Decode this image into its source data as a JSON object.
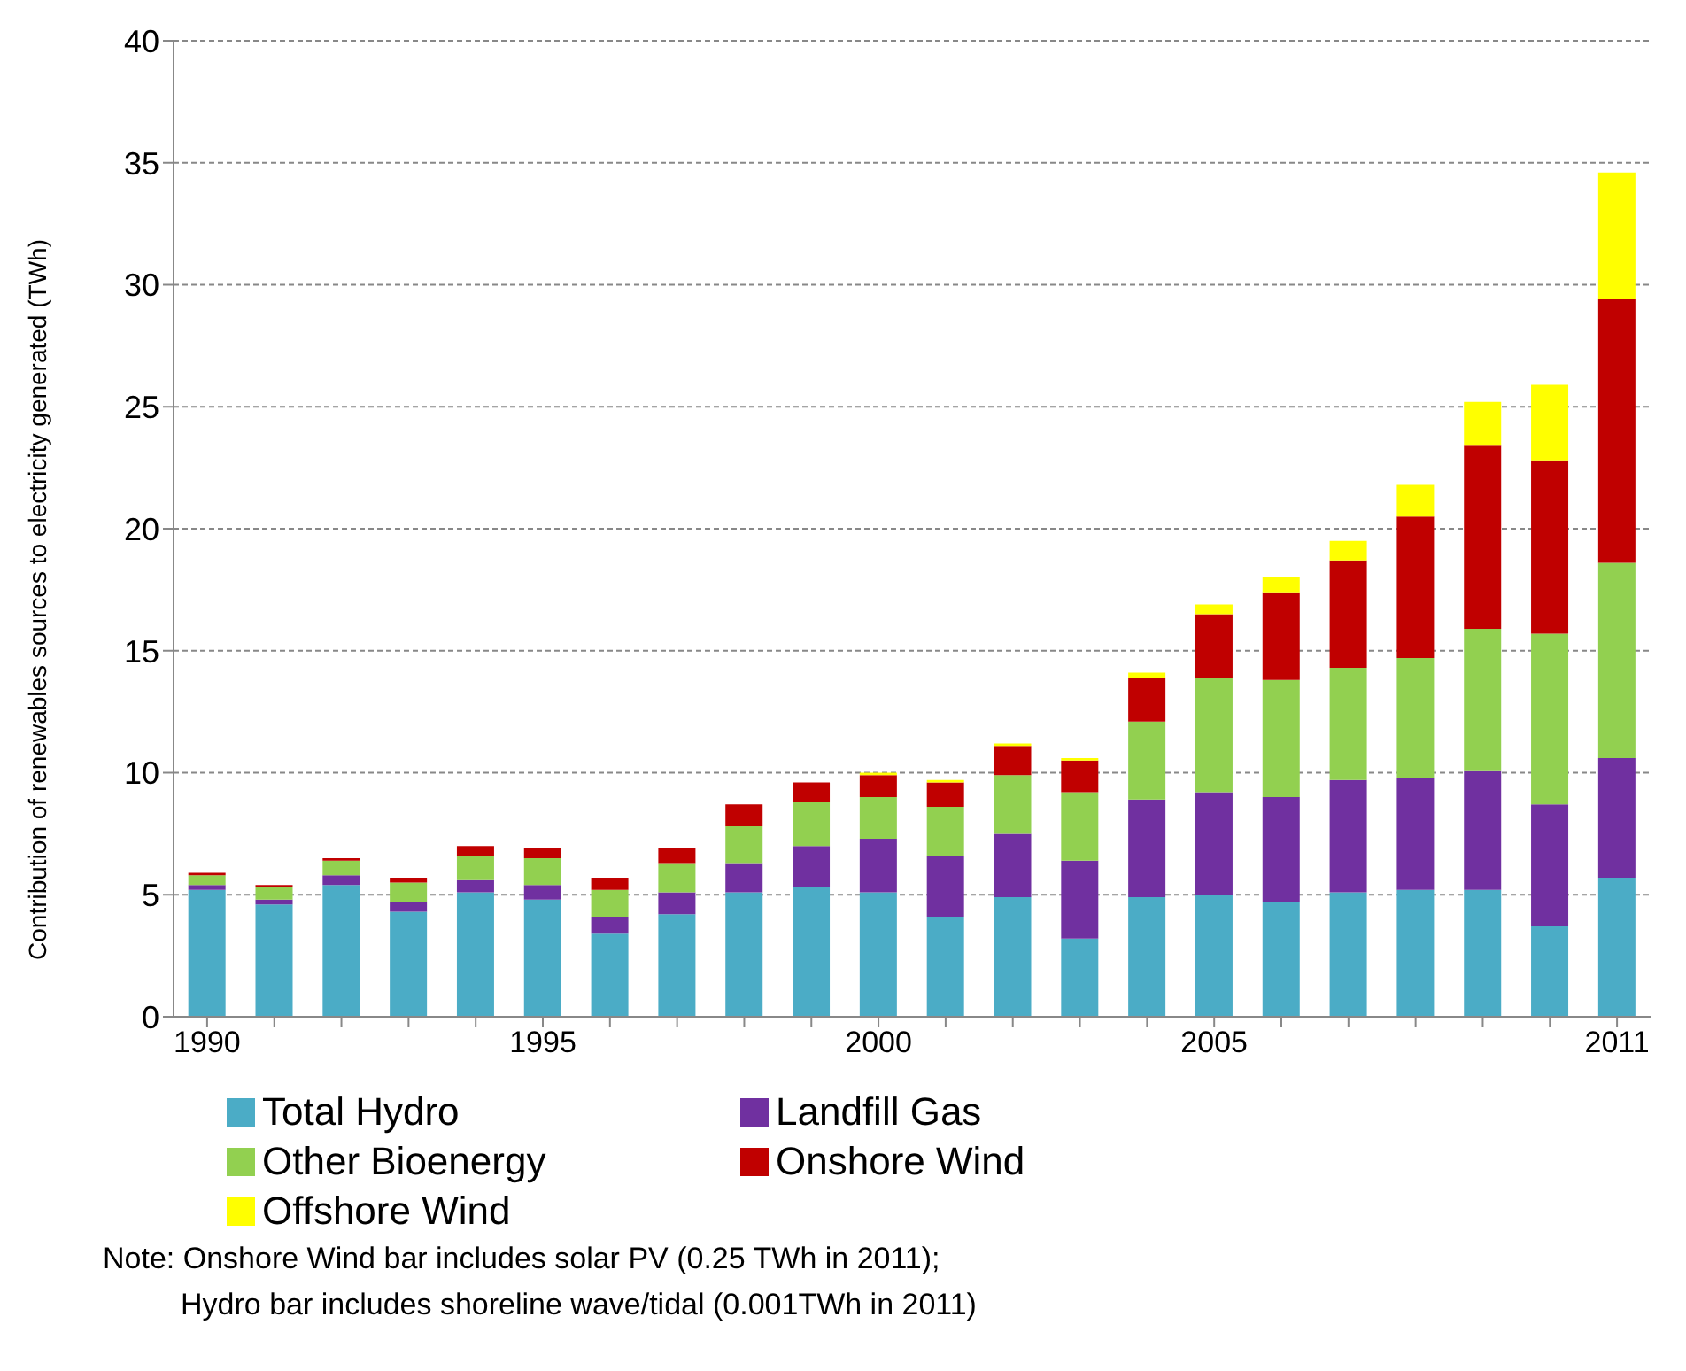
{
  "chart_data": {
    "type": "bar",
    "stacked": true,
    "ylabel": "Contribution of  renewables  sources to electricity generated  (TWh)",
    "categories": [
      "1990",
      null,
      null,
      null,
      null,
      "1995",
      null,
      null,
      null,
      null,
      "2000",
      null,
      null,
      null,
      null,
      "2005",
      null,
      null,
      null,
      null,
      null,
      "2011"
    ],
    "series": [
      {
        "name": "Total Hydro",
        "color": "#4bacc6",
        "values": [
          5.2,
          4.6,
          5.4,
          4.3,
          5.1,
          4.8,
          3.4,
          4.2,
          5.1,
          5.3,
          5.1,
          4.1,
          4.9,
          3.2,
          4.9,
          5.0,
          4.7,
          5.1,
          5.2,
          5.2,
          3.7,
          5.7
        ]
      },
      {
        "name": "Landfill Gas",
        "color": "#7030a0",
        "values": [
          0.2,
          0.2,
          0.4,
          0.4,
          0.5,
          0.6,
          0.7,
          0.9,
          1.2,
          1.7,
          2.2,
          2.5,
          2.6,
          3.2,
          4.0,
          4.2,
          4.3,
          4.6,
          4.6,
          4.9,
          5.0,
          4.9
        ]
      },
      {
        "name": "Other Bioenergy",
        "color": "#92d050",
        "values": [
          0.4,
          0.5,
          0.6,
          0.8,
          1.0,
          1.1,
          1.1,
          1.2,
          1.5,
          1.8,
          1.7,
          2.0,
          2.4,
          2.8,
          3.2,
          4.7,
          4.8,
          4.6,
          4.9,
          5.8,
          7.0,
          8.0
        ]
      },
      {
        "name": "Onshore Wind",
        "color": "#c00000",
        "values": [
          0.1,
          0.1,
          0.1,
          0.2,
          0.4,
          0.4,
          0.5,
          0.6,
          0.9,
          0.8,
          0.9,
          1.0,
          1.2,
          1.3,
          1.8,
          2.6,
          3.6,
          4.4,
          5.8,
          7.5,
          7.1,
          10.8
        ]
      },
      {
        "name": "Offshore Wind",
        "color": "#ffff00",
        "values": [
          0,
          0,
          0,
          0,
          0,
          0,
          0,
          0,
          0,
          0,
          0.1,
          0.1,
          0.1,
          0.1,
          0.2,
          0.4,
          0.6,
          0.8,
          1.3,
          1.8,
          3.1,
          5.2
        ]
      }
    ],
    "ylim": [
      0,
      40
    ],
    "yticks": [
      0,
      5,
      10,
      15,
      20,
      25,
      30,
      35,
      40
    ],
    "grid": "y",
    "legend": "bottom",
    "annotations": [
      "Note: Onshore Wind bar includes solar PV (0.25 TWh in 2011);",
      "Hydro bar includes shoreline wave/tidal (0.001TWh in 2011)"
    ]
  }
}
